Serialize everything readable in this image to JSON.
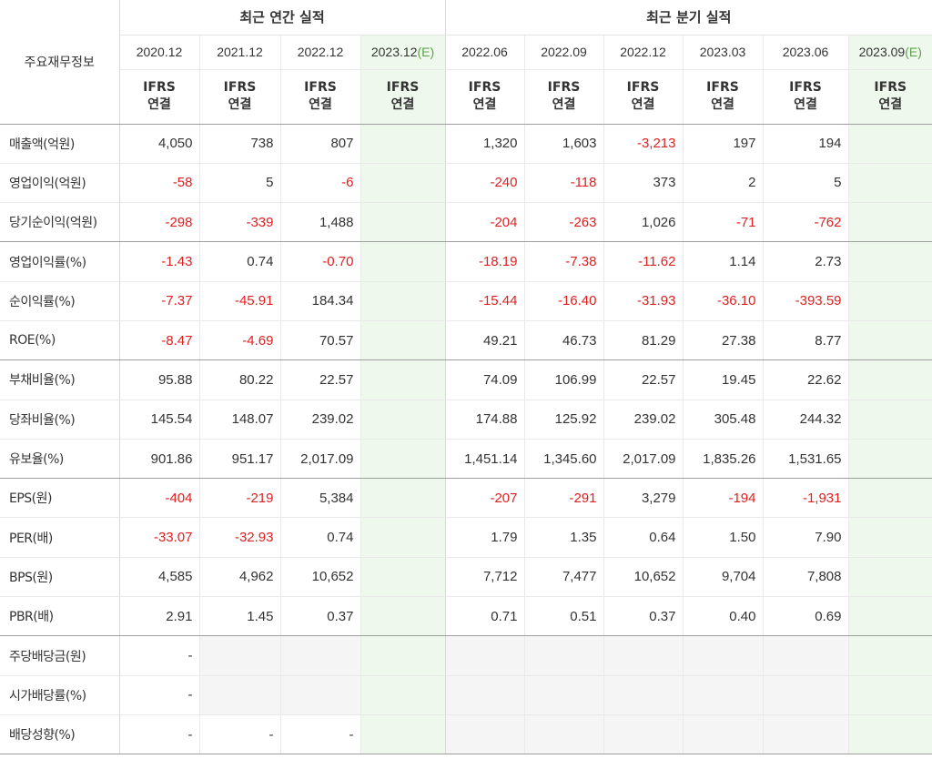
{
  "header": {
    "corner_label": "주요재무정보",
    "annual_group": "최근 연간 실적",
    "quarterly_group": "최근 분기 실적",
    "annual_periods": [
      "2020.12",
      "2021.12",
      "2022.12",
      "2023.12"
    ],
    "annual_estimate_suffix": "(E)",
    "quarterly_periods": [
      "2022.06",
      "2022.09",
      "2022.12",
      "2023.03",
      "2023.06",
      "2023.09"
    ],
    "quarterly_estimate_suffix": "(E)",
    "standard_top": "IFRS",
    "standard_bottom": "연결"
  },
  "colors": {
    "negative": "#e02020",
    "ifrs_orange": "#f07c1d",
    "estimate_bg": "#eef8ec",
    "estimate_text": "#5fa24b"
  },
  "rows": [
    {
      "label": "매출액(억원)",
      "annual": [
        "4,050",
        "738",
        "807",
        ""
      ],
      "quarterly": [
        "1,320",
        "1,603",
        "-3,213",
        "197",
        "194",
        ""
      ]
    },
    {
      "label": "영업이익(억원)",
      "annual": [
        "-58",
        "5",
        "-6",
        ""
      ],
      "quarterly": [
        "-240",
        "-118",
        "373",
        "2",
        "5",
        ""
      ]
    },
    {
      "label": "당기순이익(억원)",
      "annual": [
        "-298",
        "-339",
        "1,488",
        ""
      ],
      "quarterly": [
        "-204",
        "-263",
        "1,026",
        "-71",
        "-762",
        ""
      ]
    },
    {
      "label": "영업이익률(%)",
      "annual": [
        "-1.43",
        "0.74",
        "-0.70",
        ""
      ],
      "quarterly": [
        "-18.19",
        "-7.38",
        "-11.62",
        "1.14",
        "2.73",
        ""
      ]
    },
    {
      "label": "순이익률(%)",
      "annual": [
        "-7.37",
        "-45.91",
        "184.34",
        ""
      ],
      "quarterly": [
        "-15.44",
        "-16.40",
        "-31.93",
        "-36.10",
        "-393.59",
        ""
      ]
    },
    {
      "label": "ROE(%)",
      "annual": [
        "-8.47",
        "-4.69",
        "70.57",
        ""
      ],
      "quarterly": [
        "49.21",
        "46.73",
        "81.29",
        "27.38",
        "8.77",
        ""
      ]
    },
    {
      "label": "부채비율(%)",
      "annual": [
        "95.88",
        "80.22",
        "22.57",
        ""
      ],
      "quarterly": [
        "74.09",
        "106.99",
        "22.57",
        "19.45",
        "22.62",
        ""
      ]
    },
    {
      "label": "당좌비율(%)",
      "annual": [
        "145.54",
        "148.07",
        "239.02",
        ""
      ],
      "quarterly": [
        "174.88",
        "125.92",
        "239.02",
        "305.48",
        "244.32",
        ""
      ]
    },
    {
      "label": "유보율(%)",
      "annual": [
        "901.86",
        "951.17",
        "2,017.09",
        ""
      ],
      "quarterly": [
        "1,451.14",
        "1,345.60",
        "2,017.09",
        "1,835.26",
        "1,531.65",
        ""
      ]
    },
    {
      "label": "EPS(원)",
      "annual": [
        "-404",
        "-219",
        "5,384",
        ""
      ],
      "quarterly": [
        "-207",
        "-291",
        "3,279",
        "-194",
        "-1,931",
        ""
      ]
    },
    {
      "label": "PER(배)",
      "annual": [
        "-33.07",
        "-32.93",
        "0.74",
        ""
      ],
      "quarterly": [
        "1.79",
        "1.35",
        "0.64",
        "1.50",
        "7.90",
        ""
      ]
    },
    {
      "label": "BPS(원)",
      "annual": [
        "4,585",
        "4,962",
        "10,652",
        ""
      ],
      "quarterly": [
        "7,712",
        "7,477",
        "10,652",
        "9,704",
        "7,808",
        ""
      ]
    },
    {
      "label": "PBR(배)",
      "annual": [
        "2.91",
        "1.45",
        "0.37",
        ""
      ],
      "quarterly": [
        "0.71",
        "0.51",
        "0.37",
        "0.40",
        "0.69",
        ""
      ]
    },
    {
      "label": "주당배당금(원)",
      "annual": [
        "-",
        "",
        "",
        ""
      ],
      "quarterly": [
        "",
        "",
        "",
        "",
        "",
        ""
      ]
    },
    {
      "label": "시가배당률(%)",
      "annual": [
        "-",
        "",
        "",
        ""
      ],
      "quarterly": [
        "",
        "",
        "",
        "",
        "",
        ""
      ]
    },
    {
      "label": "배당성향(%)",
      "annual": [
        "-",
        "-",
        "-",
        ""
      ],
      "quarterly": [
        "",
        "",
        "",
        "",
        "",
        ""
      ]
    }
  ]
}
